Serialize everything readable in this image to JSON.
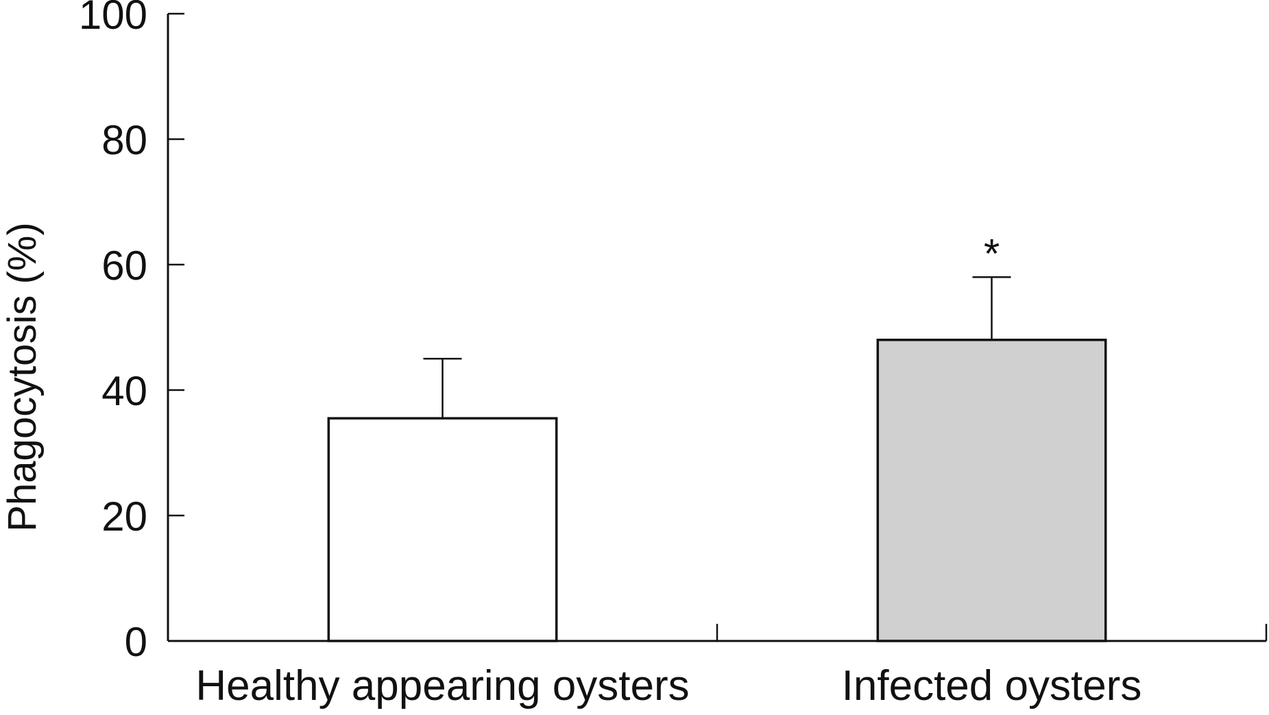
{
  "chart_data": {
    "type": "bar",
    "title": "",
    "xlabel": "",
    "ylabel": "Phagocytosis (%)",
    "ylim": [
      0,
      100
    ],
    "yticks": [
      0,
      20,
      40,
      60,
      80,
      100
    ],
    "grid": false,
    "categories": [
      "Healthy appearing oysters",
      "Infected oysters"
    ],
    "series": [
      {
        "values": [
          35.5,
          48
        ],
        "error_upper": [
          9.5,
          10
        ],
        "fill_colors": [
          "#ffffff",
          "#d0d0d0"
        ],
        "annotations": [
          "",
          "*"
        ]
      }
    ]
  },
  "colors": {
    "axis": "#111111",
    "bar_edge": "#111111"
  }
}
